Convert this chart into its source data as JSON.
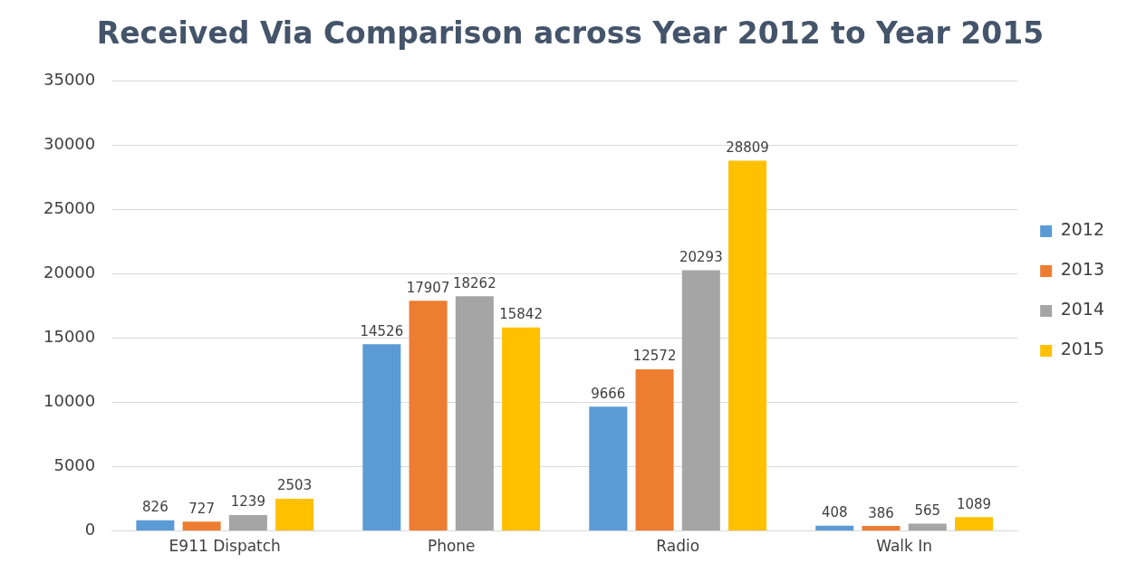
{
  "chart_data": {
    "type": "bar",
    "title": "Received Via Comparison across Year 2012 to Year 2015",
    "categories": [
      "E911 Dispatch",
      "Phone",
      "Radio",
      "Walk In"
    ],
    "series": [
      {
        "name": "2012",
        "color": "#5b9bd5",
        "values": [
          826,
          14526,
          9666,
          408
        ]
      },
      {
        "name": "2013",
        "color": "#ed7d31",
        "values": [
          727,
          17907,
          12572,
          386
        ]
      },
      {
        "name": "2014",
        "color": "#a5a5a5",
        "values": [
          1239,
          18262,
          20293,
          565
        ]
      },
      {
        "name": "2015",
        "color": "#ffc000",
        "values": [
          2503,
          15842,
          28809,
          1089
        ]
      }
    ],
    "ylim": [
      0,
      35000
    ],
    "yticks": [
      0,
      5000,
      10000,
      15000,
      20000,
      25000,
      30000,
      35000
    ],
    "grid": "y",
    "legend": "right",
    "data_labels": true
  }
}
